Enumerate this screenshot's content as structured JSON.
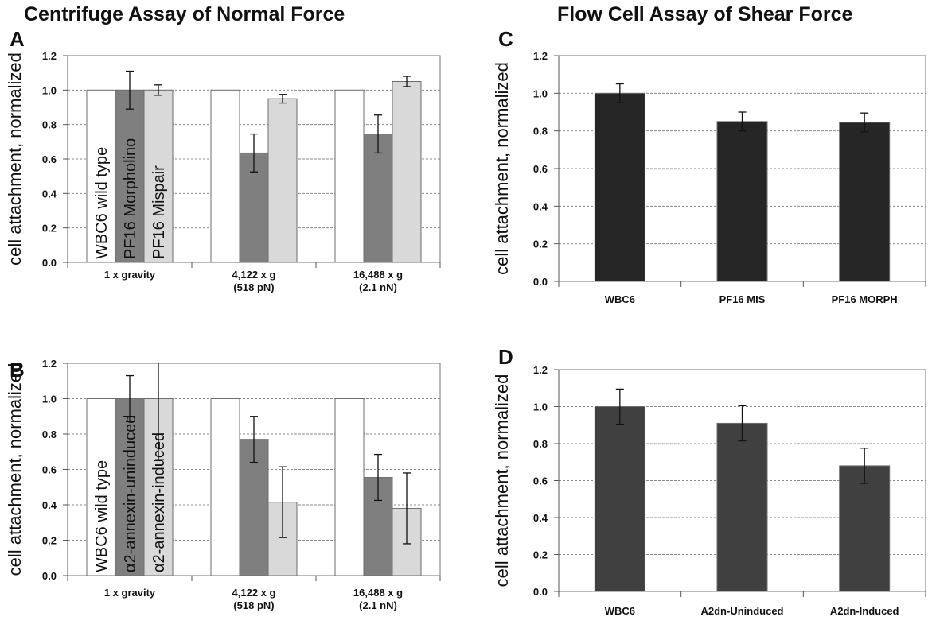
{
  "headings": {
    "left": "Centrifuge Assay of Normal Force",
    "right": "Flow Cell Assay of Shear Force"
  },
  "chart_data": [
    {
      "id": "A",
      "panel_label": "A",
      "type": "bar",
      "ylabel": "cell attachment, normalized",
      "ylim": [
        0,
        1.2
      ],
      "yticks": [
        "0.0",
        "0.2",
        "0.4",
        "0.6",
        "0.8",
        "1.0",
        "1.2"
      ],
      "grid": true,
      "categories": [
        [
          "1 x gravity"
        ],
        [
          "4,122 x g",
          "(518 pN)"
        ],
        [
          "16,488 x g",
          "(2.1 nN)"
        ]
      ],
      "series": [
        {
          "name": "WBC6 wild type",
          "color": "#ffffff",
          "values": [
            1.0,
            1.0,
            1.0
          ],
          "errors": [
            0,
            0,
            0
          ]
        },
        {
          "name": "PF16 Morpholino",
          "color": "#7f7f7f",
          "values": [
            1.0,
            0.635,
            0.745
          ],
          "errors": [
            0.11,
            0.11,
            0.11
          ]
        },
        {
          "name": "PF16 Mispair",
          "color": "#d9d9d9",
          "values": [
            1.0,
            0.95,
            1.05
          ],
          "errors": [
            0.03,
            0.025,
            0.03
          ]
        }
      ]
    },
    {
      "id": "B",
      "panel_label": "B",
      "type": "bar",
      "ylabel": "cell attachment, normalized",
      "ylim": [
        0,
        1.2
      ],
      "yticks": [
        "0.0",
        "0.2",
        "0.4",
        "0.6",
        "0.8",
        "1.0",
        "1.2"
      ],
      "grid": true,
      "categories": [
        [
          "1 x gravity"
        ],
        [
          "4,122 x g",
          "(518 pN)"
        ],
        [
          "16,488 x g",
          "(2.1 nN)"
        ]
      ],
      "series": [
        {
          "name": "WBC6 wild type",
          "color": "#ffffff",
          "values": [
            1.0,
            1.0,
            1.0
          ],
          "errors": [
            0,
            0,
            0
          ]
        },
        {
          "name": "α2-annexin-uninduced",
          "color": "#7f7f7f",
          "values": [
            1.0,
            0.77,
            0.555
          ],
          "errors": [
            0.13,
            0.13,
            0.13
          ]
        },
        {
          "name": "α2-annexin-induced",
          "color": "#d9d9d9",
          "values": [
            1.0,
            0.415,
            0.38
          ],
          "errors": [
            0.35,
            0.2,
            0.2
          ]
        }
      ]
    },
    {
      "id": "C",
      "panel_label": "C",
      "type": "bar",
      "ylabel": "cell attachment, normalized",
      "ylim": [
        0,
        1.2
      ],
      "yticks": [
        "0.0",
        "0.2",
        "0.4",
        "0.6",
        "0.8",
        "1.0",
        "1.2"
      ],
      "grid": true,
      "categories": [
        [
          "WBC6"
        ],
        [
          "PF16 MIS"
        ],
        [
          "PF16 MORPH"
        ]
      ],
      "series": [
        {
          "name": "",
          "color": "#262626",
          "values": [
            1.0,
            0.85,
            0.845
          ],
          "errors": [
            0.05,
            0.05,
            0.05
          ]
        }
      ]
    },
    {
      "id": "D",
      "panel_label": "D",
      "type": "bar",
      "ylabel": "cell attachment, normalized",
      "ylim": [
        0,
        1.2
      ],
      "yticks": [
        "0.0",
        "0.2",
        "0.4",
        "0.6",
        "0.8",
        "1.0",
        "1.2"
      ],
      "grid": true,
      "categories": [
        [
          "WBC6"
        ],
        [
          "A2dn-Uninduced"
        ],
        [
          "A2dn-Induced"
        ]
      ],
      "series": [
        {
          "name": "",
          "color": "#404040",
          "values": [
            1.0,
            0.91,
            0.68
          ],
          "errors": [
            0.095,
            0.095,
            0.095
          ]
        }
      ]
    }
  ]
}
